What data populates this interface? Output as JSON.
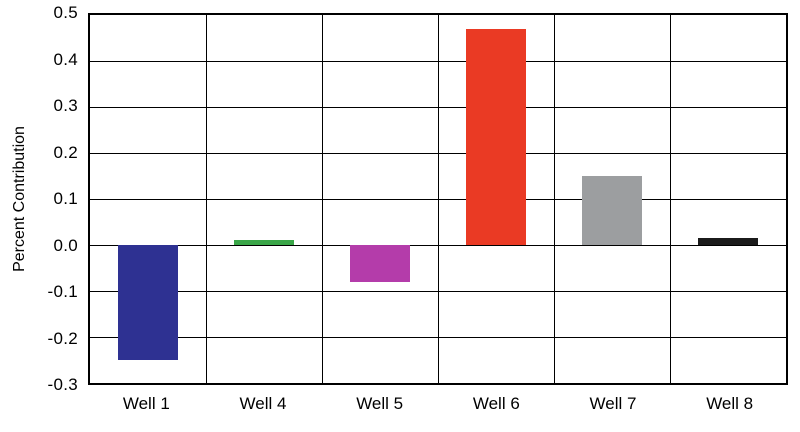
{
  "chart_data": {
    "type": "bar",
    "title": "",
    "xlabel": "",
    "ylabel": "Percent Contribution",
    "categories": [
      "Well 1",
      "Well 4",
      "Well 5",
      "Well 6",
      "Well 7",
      "Well 8"
    ],
    "values": [
      -0.25,
      0.01,
      -0.08,
      0.47,
      0.15,
      0.015
    ],
    "bar_colors": [
      "#2e3192",
      "#3aa648",
      "#b43caa",
      "#ea3a24",
      "#9c9ea0",
      "#1b1b1b"
    ],
    "ylim": [
      -0.3,
      0.5
    ],
    "ytick_step": 0.1,
    "ytick_labels": [
      "0.5",
      "0.4",
      "0.3",
      "0.2",
      "0.1",
      "0.0",
      "-0.1",
      "-0.2",
      "-0.3"
    ],
    "grid": true,
    "grid_color": "#000000",
    "legend": false,
    "background_color": "#ffffff"
  }
}
